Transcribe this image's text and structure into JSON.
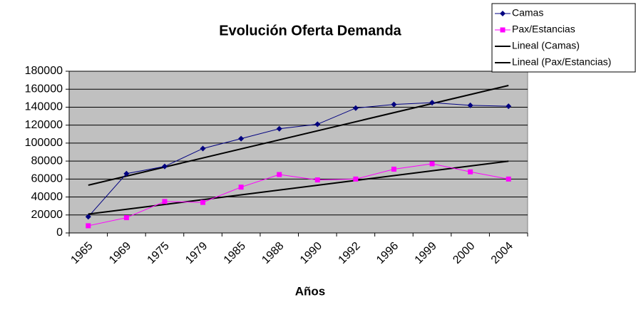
{
  "chart_data": {
    "type": "line",
    "title": "Evolución Oferta Demanda",
    "x_label": "Años",
    "categories": [
      "1965",
      "1969",
      "1975",
      "1979",
      "1985",
      "1988",
      "1990",
      "1992",
      "1996",
      "1999",
      "2000",
      "2004"
    ],
    "series": [
      {
        "name": "Camas",
        "color": "#000080",
        "marker": "diamond",
        "values": [
          18000,
          66000,
          74000,
          94000,
          105000,
          116000,
          121000,
          139000,
          143000,
          145000,
          142000,
          141000
        ],
        "trendline": {
          "name": "Lineal (Camas)",
          "fit": "linear",
          "color": "#000000"
        }
      },
      {
        "name": "Pax/Estancias",
        "color": "#ff00ff",
        "marker": "square",
        "values": [
          8000,
          17000,
          35000,
          34000,
          51000,
          65000,
          59000,
          60000,
          71000,
          77000,
          68000,
          60000
        ],
        "trendline": {
          "name": "Lineal (Pax/Estancias)",
          "fit": "linear",
          "color": "#000000"
        }
      }
    ],
    "ylim": [
      0,
      180000
    ],
    "yticks": [
      0,
      20000,
      40000,
      60000,
      80000,
      100000,
      120000,
      140000,
      160000,
      180000
    ],
    "grid": true,
    "legend": "top-right"
  }
}
